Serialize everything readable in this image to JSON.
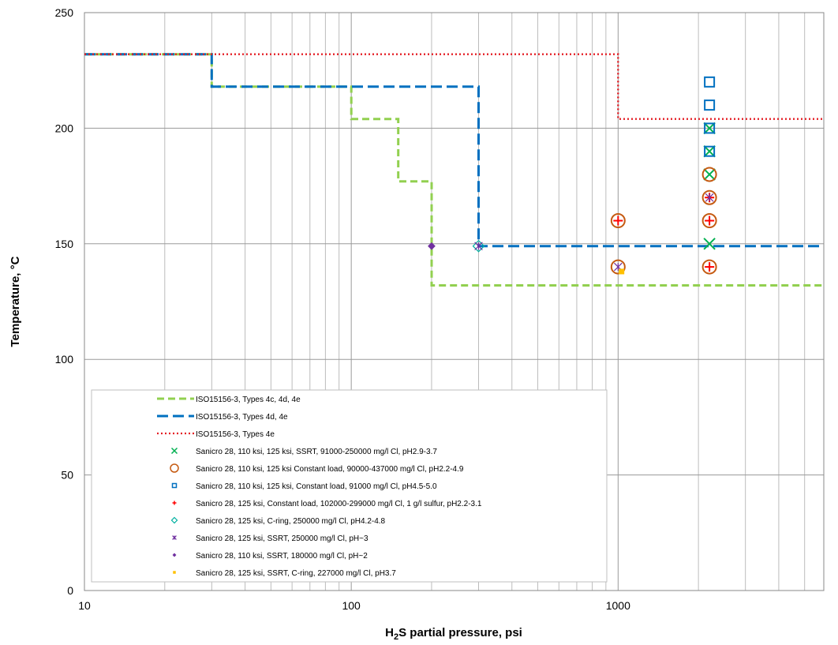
{
  "chart_data": {
    "type": "scatter",
    "title": "",
    "xlabel": {
      "main": "H",
      "sub": "2",
      "rest": "S partial pressure, psi"
    },
    "ylabel": "Temperature, °C",
    "xscale": "log",
    "xlim": [
      10,
      5900
    ],
    "ylim": [
      0,
      250
    ],
    "x_ticks": [
      {
        "value": 10,
        "label": "10"
      },
      {
        "value": 100,
        "label": "100"
      },
      {
        "value": 1000,
        "label": "1000"
      }
    ],
    "y_ticks": [
      {
        "value": 0,
        "label": "0"
      },
      {
        "value": 50,
        "label": "50"
      },
      {
        "value": 100,
        "label": "100"
      },
      {
        "value": 150,
        "label": "150"
      },
      {
        "value": 200,
        "label": "200"
      },
      {
        "value": 250,
        "label": "250"
      }
    ],
    "grid": true,
    "legend_position": "bottom-left inside plot",
    "lines": [
      {
        "name": "ISO15156-3, Types 4c, 4d, 4e",
        "color": "#92D050",
        "style": "dash",
        "points": [
          [
            10,
            232
          ],
          [
            30,
            232
          ],
          [
            30,
            218
          ],
          [
            100,
            218
          ],
          [
            100,
            204
          ],
          [
            150,
            204
          ],
          [
            150,
            177
          ],
          [
            200,
            177
          ],
          [
            200,
            132
          ],
          [
            5900,
            132
          ]
        ]
      },
      {
        "name": "ISO15156-3, Types 4d, 4e",
        "color": "#0070C0",
        "style": "longdash",
        "points": [
          [
            10,
            232
          ],
          [
            30,
            232
          ],
          [
            30,
            218
          ],
          [
            300,
            218
          ],
          [
            300,
            149
          ],
          [
            5900,
            149
          ]
        ]
      },
      {
        "name": "ISO15156-3, Types 4e",
        "color": "#E41E25",
        "style": "dot",
        "points": [
          [
            10,
            232
          ],
          [
            1000,
            232
          ],
          [
            1000,
            204
          ],
          [
            5900,
            204
          ]
        ]
      }
    ],
    "series": [
      {
        "name": "Sanicro 28, 110 ksi, 125 ksi, SSRT, 91000-250000 mg/l Cl, pH2.9-3.7",
        "color": "#00B050",
        "marker": "x",
        "points": [
          [
            2200,
            200
          ],
          [
            2200,
            190
          ],
          [
            2200,
            180
          ],
          [
            2200,
            150
          ]
        ]
      },
      {
        "name": "Sanicro 28, 110 ksi, 125 ksi Constant load, 90000-437000 mg/l Cl, pH2.2-4.9",
        "color": "#C55A11",
        "marker": "circle",
        "points": [
          [
            1000,
            160
          ],
          [
            1000,
            140
          ],
          [
            2200,
            180
          ],
          [
            2200,
            170
          ],
          [
            2200,
            160
          ],
          [
            2200,
            140
          ]
        ]
      },
      {
        "name": "Sanicro 28, 110 ksi, 125 ksi, Constant load, 91000 mg/l Cl, pH4.5-5.0",
        "color": "#0070C0",
        "marker": "square",
        "points": [
          [
            2200,
            220
          ],
          [
            2200,
            210
          ],
          [
            2200,
            200
          ],
          [
            2200,
            190
          ]
        ]
      },
      {
        "name": "Sanicro 28, 125 ksi, Constant load, 102000-299000 mg/l Cl, 1 g/l sulfur, pH2.2-3.1",
        "color": "#FF0000",
        "marker": "plus",
        "points": [
          [
            1000,
            160
          ],
          [
            2200,
            170
          ],
          [
            2200,
            160
          ],
          [
            2200,
            140
          ]
        ]
      },
      {
        "name": "Sanicro 28, 125 ksi, C-ring, 250000 mg/l Cl, pH4.2-4.8",
        "color": "#00B0A0",
        "marker": "diamond-open",
        "points": [
          [
            300,
            149
          ]
        ]
      },
      {
        "name": "Sanicro 28, 125 ksi, SSRT, 250000 mg/l Cl, pH~3",
        "color": "#7030A0",
        "marker": "asterisk",
        "points": [
          [
            300,
            149
          ],
          [
            1000,
            140
          ],
          [
            2200,
            170
          ]
        ]
      },
      {
        "name": "Sanicro 28, 110 ksi, SSRT, 180000 mg/l Cl, pH~2",
        "color": "#7030A0",
        "marker": "diamond",
        "points": [
          [
            200,
            149
          ]
        ]
      },
      {
        "name": "Sanicro 28, 125 ksi, SSRT, C-ring, 227000 mg/l Cl, pH3.7",
        "color": "#FFC000",
        "marker": "square-small",
        "points": [
          [
            1030,
            138
          ]
        ]
      }
    ]
  }
}
